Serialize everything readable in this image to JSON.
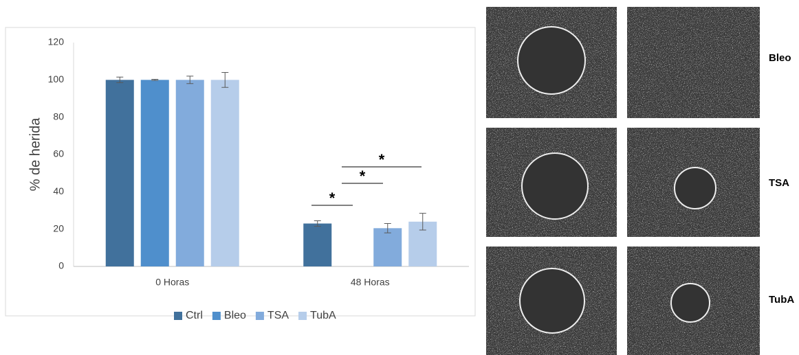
{
  "chart_data": {
    "type": "bar",
    "y_label": "% de herida",
    "categories": [
      "0 Horas",
      "48 Horas"
    ],
    "series": [
      {
        "name": "Ctrl",
        "color": "#41719c",
        "values": [
          100,
          23
        ],
        "errors": [
          1.5,
          1.5
        ]
      },
      {
        "name": "Bleo",
        "color": "#4f8fcc",
        "values": [
          100,
          0
        ],
        "errors": [
          0.3,
          null
        ]
      },
      {
        "name": "TSA",
        "color": "#82abdc",
        "values": [
          100,
          20.5
        ],
        "errors": [
          2,
          2.5
        ]
      },
      {
        "name": "TubA",
        "color": "#b6cdea",
        "values": [
          100,
          24
        ],
        "errors": [
          4,
          4.5
        ]
      }
    ],
    "ylim": [
      0,
      120
    ],
    "yticks": [
      0,
      20,
      40,
      60,
      80,
      100,
      120
    ],
    "grid": false,
    "legend": "bottom",
    "annotations": [
      "*",
      "*",
      "*"
    ]
  },
  "panel": {
    "row_labels": [
      "Bleo",
      "TSA",
      "TubA"
    ]
  }
}
